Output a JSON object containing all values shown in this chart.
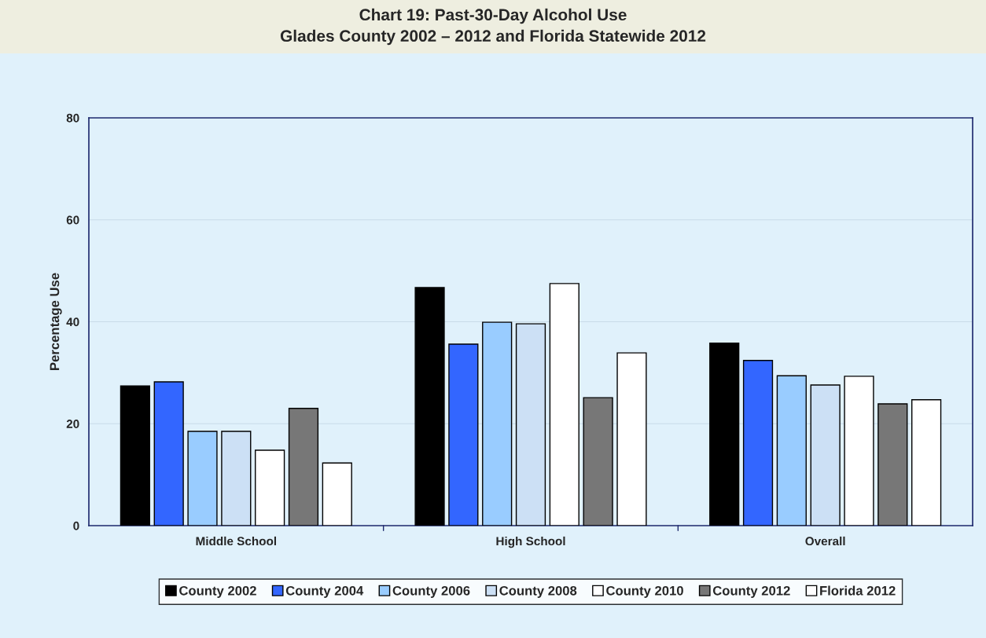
{
  "chart_data": {
    "type": "bar",
    "title": "Chart 19: Past-30-Day Alcohol Use\nGlades County 2002 – 2012 and Florida Statewide 2012",
    "ylabel": "Percentage Use",
    "categories": [
      "Middle School",
      "High School",
      "Overall"
    ],
    "series": [
      {
        "name": "County 2002",
        "color": "#000000",
        "values": [
          27.4,
          46.7,
          35.8
        ]
      },
      {
        "name": "County 2004",
        "color": "#3366ff",
        "values": [
          28.2,
          35.6,
          32.4
        ]
      },
      {
        "name": "County 2006",
        "color": "#99ccff",
        "values": [
          18.5,
          39.9,
          29.4
        ]
      },
      {
        "name": "County 2008",
        "color": "#cce0f5",
        "values": [
          18.5,
          39.6,
          27.6
        ]
      },
      {
        "name": "County 2010",
        "color": "#ffffff",
        "values": [
          14.8,
          47.5,
          29.3
        ]
      },
      {
        "name": "County 2012",
        "color": "#777777",
        "values": [
          23.0,
          25.1,
          23.9
        ]
      },
      {
        "name": "Florida 2012",
        "color": "#ffffff",
        "values": [
          12.3,
          33.9,
          24.7
        ]
      }
    ],
    "ylim": [
      0,
      80
    ],
    "yticks": [
      0,
      20,
      40,
      60,
      80
    ],
    "grid": "y",
    "legend": "bottom"
  }
}
